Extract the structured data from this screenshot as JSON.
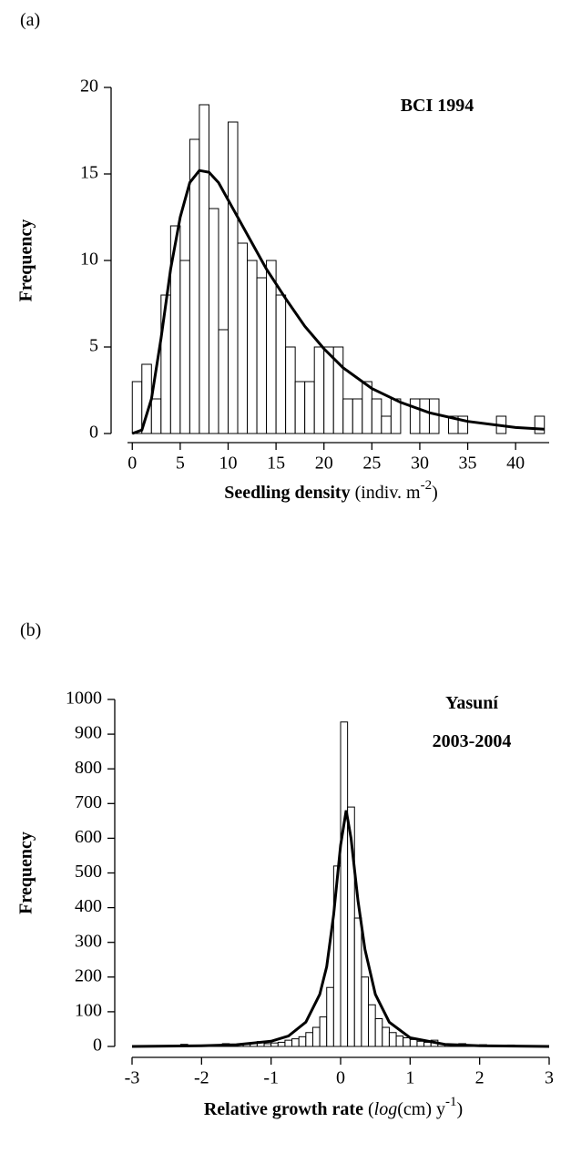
{
  "chart_data": [
    {
      "type": "histogram",
      "panel_label": "(a)",
      "annotation": [
        "BCI 1994"
      ],
      "ylabel": "Frequency",
      "xlabel_parts": [
        {
          "text": "Seedling density",
          "style": "bold"
        },
        {
          "text": " (indiv. m",
          "style": "normal"
        },
        {
          "text": "-2",
          "style": "sup"
        },
        {
          "text": ")",
          "style": "normal"
        }
      ],
      "bins": [
        0,
        1,
        2,
        3,
        4,
        5,
        6,
        7,
        8,
        9,
        10,
        11,
        12,
        13,
        14,
        15,
        16,
        17,
        18,
        19,
        20,
        21,
        22,
        23,
        24,
        25,
        26,
        27,
        28,
        29,
        30,
        31,
        32,
        33,
        34,
        35,
        36,
        37,
        38,
        39,
        40,
        41,
        42,
        43
      ],
      "counts": [
        3,
        4,
        2,
        8,
        12,
        10,
        17,
        19,
        13,
        6,
        18,
        11,
        10,
        9,
        10,
        8,
        5,
        3,
        3,
        5,
        5,
        5,
        2,
        2,
        3,
        2,
        1,
        2,
        0,
        2,
        2,
        2,
        0,
        1,
        1,
        0,
        0,
        0,
        1,
        0,
        0,
        0,
        1
      ],
      "curve": {
        "x": [
          0,
          1,
          2,
          3,
          4,
          5,
          6,
          7,
          8,
          9,
          10,
          12,
          14,
          16,
          18,
          20,
          22,
          25,
          28,
          31,
          35,
          40,
          43
        ],
        "y": [
          0,
          0.2,
          2,
          5.5,
          9.5,
          12.5,
          14.5,
          15.2,
          15.1,
          14.5,
          13.5,
          11.5,
          9.5,
          7.8,
          6.2,
          4.9,
          3.8,
          2.6,
          1.8,
          1.2,
          0.7,
          0.35,
          0.25
        ]
      },
      "bar_color": "#ffffff",
      "edge_color": "#000000",
      "curve_color": "#000000",
      "xlim": [
        -0.5,
        43.5
      ],
      "ylim": [
        0,
        20
      ],
      "xticks": [
        0,
        5,
        10,
        15,
        20,
        25,
        30,
        35,
        40
      ],
      "yticks": [
        0,
        5,
        10,
        15,
        20
      ]
    },
    {
      "type": "histogram",
      "panel_label": "(b)",
      "annotation": [
        "Yasuní",
        "2003-2004"
      ],
      "ylabel": "Frequency",
      "xlabel_parts": [
        {
          "text": "Relative growth rate",
          "style": "bold"
        },
        {
          "text": " (",
          "style": "normal"
        },
        {
          "text": "log",
          "style": "italic"
        },
        {
          "text": "(cm) y",
          "style": "normal"
        },
        {
          "text": "-1",
          "style": "sup"
        },
        {
          "text": ")",
          "style": "normal"
        }
      ],
      "bins": [
        -3,
        -2.9,
        -2.8,
        -2.7,
        -2.6,
        -2.5,
        -2.4,
        -2.3,
        -2.2,
        -2.1,
        -2,
        -1.9,
        -1.8,
        -1.7,
        -1.6,
        -1.5,
        -1.4,
        -1.3,
        -1.2,
        -1.1,
        -1,
        -0.9,
        -0.8,
        -0.7,
        -0.6,
        -0.5,
        -0.4,
        -0.3,
        -0.2,
        -0.1,
        0,
        0.1,
        0.2,
        0.3,
        0.4,
        0.5,
        0.6,
        0.7,
        0.8,
        0.9,
        1,
        1.1,
        1.2,
        1.3,
        1.4,
        1.5,
        1.6,
        1.7,
        1.8,
        1.9,
        2,
        2.1,
        2.2,
        2.3,
        2.4,
        2.5,
        2.6,
        2.7,
        2.8,
        2.9,
        3
      ],
      "counts": [
        0,
        2,
        0,
        1,
        2,
        0,
        3,
        6,
        2,
        3,
        4,
        3,
        5,
        8,
        6,
        5,
        6,
        10,
        14,
        8,
        10,
        12,
        18,
        22,
        28,
        40,
        55,
        85,
        170,
        520,
        935,
        690,
        370,
        200,
        120,
        80,
        55,
        40,
        30,
        25,
        20,
        15,
        12,
        18,
        8,
        6,
        5,
        8,
        4,
        3,
        5,
        2,
        3,
        2,
        4,
        2,
        1,
        2,
        1,
        0
      ],
      "curve": {
        "x": [
          -3,
          -2,
          -1.5,
          -1,
          -0.75,
          -0.5,
          -0.3,
          -0.2,
          -0.1,
          0,
          0.08,
          0.15,
          0.25,
          0.35,
          0.5,
          0.7,
          1,
          1.5,
          2,
          3
        ],
        "y": [
          0,
          2,
          5,
          15,
          30,
          70,
          150,
          230,
          380,
          580,
          680,
          600,
          420,
          280,
          150,
          70,
          25,
          6,
          2,
          0
        ]
      },
      "bar_color": "#ffffff",
      "edge_color": "#000000",
      "curve_color": "#000000",
      "xlim": [
        -3,
        3
      ],
      "ylim": [
        0,
        1000
      ],
      "xticks": [
        -3,
        -2,
        -1,
        0,
        1,
        2,
        3
      ],
      "yticks": [
        0,
        100,
        200,
        300,
        400,
        500,
        600,
        700,
        800,
        900,
        1000
      ]
    }
  ]
}
